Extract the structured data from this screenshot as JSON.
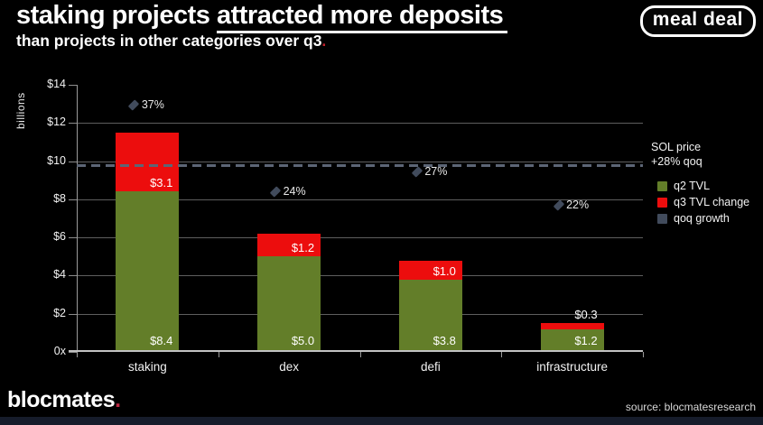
{
  "header": {
    "title_part1": "staking projects ",
    "title_part2": "attracted more deposits",
    "subtitle_text": "than projects in other categories over q3",
    "subtitle_period": ".",
    "logo_text": "meal deal"
  },
  "colors": {
    "background": "#000000",
    "q2_green": "#637e29",
    "q3_red": "#ec0d0d",
    "qoq_slate": "#414b5c",
    "sol_dash": "#5c6575",
    "accent_red": "#c2202c",
    "brand_dot_red": "#bf2742",
    "bottom_strip_navy": "#161c2b"
  },
  "chart_data": {
    "type": "bar",
    "subtype": "stacked-with-markers",
    "title": "staking projects attracted more deposits than projects in other categories over q3",
    "xlabel": "",
    "ylabel": "billions",
    "ylim": [
      0,
      14
    ],
    "grid": "horizontal",
    "legend_position": "right",
    "y_ticks": [
      {
        "value": 14,
        "label": "$14"
      },
      {
        "value": 12,
        "label": "$12"
      },
      {
        "value": 10,
        "label": "$10"
      },
      {
        "value": 8,
        "label": "$8"
      },
      {
        "value": 6,
        "label": "$6"
      },
      {
        "value": 4,
        "label": "$4"
      },
      {
        "value": 2,
        "label": "$2"
      },
      {
        "value": 0,
        "label": "0x"
      }
    ],
    "categories": [
      "staking",
      "dex",
      "defi",
      "infrastructure"
    ],
    "series": [
      {
        "name": "q2 TVL",
        "color": "#637e29",
        "values": [
          8.4,
          5.0,
          3.8,
          1.2
        ],
        "labels": [
          "$8.4",
          "$5.0",
          "$3.8",
          "$1.2"
        ]
      },
      {
        "name": "q3 TVL change",
        "color": "#ec0d0d",
        "values": [
          3.1,
          1.2,
          1.0,
          0.3
        ],
        "labels": [
          "$3.1",
          "$1.2",
          "$1.0",
          "$0.3"
        ]
      }
    ],
    "markers": {
      "name": "qoq growth",
      "color": "#414b5c",
      "shape": "diamond",
      "values_pct": [
        37,
        24,
        27,
        22
      ],
      "labels": [
        "37%",
        "24%",
        "27%",
        "22%"
      ],
      "plot_scale_billions_per_pct": 0.35
    },
    "reference_line": {
      "label_line1": "SOL price",
      "label_line2": "+28% qoq",
      "value_pct": 28,
      "plot_value_billions": 9.8,
      "style": "dashed",
      "color": "#5c6575"
    },
    "legend": [
      {
        "label": "q2 TVL",
        "color": "#637e29"
      },
      {
        "label": "q3 TVL change",
        "color": "#ec0d0d"
      },
      {
        "label": "qoq growth",
        "color": "#414b5c"
      }
    ]
  },
  "footer": {
    "brand": "blocmates",
    "brand_period": ".",
    "source": "source: blocmatesresearch"
  }
}
